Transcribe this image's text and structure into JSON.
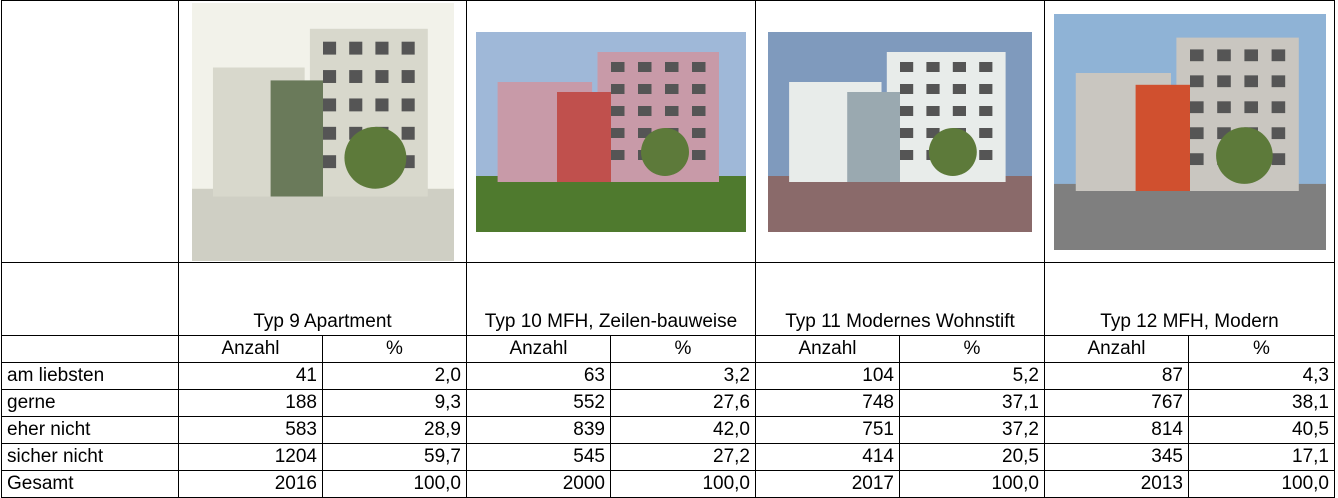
{
  "table": {
    "columns": [
      {
        "title": "Typ 9 Apartment",
        "subheaders": [
          "Anzahl",
          "%"
        ]
      },
      {
        "title": "Typ 10 MFH, Zeilen-bauweise",
        "subheaders": [
          "Anzahl",
          "%"
        ]
      },
      {
        "title": "Typ 11 Modernes Wohnstift",
        "subheaders": [
          "Anzahl",
          "%"
        ]
      },
      {
        "title": "Typ 12 MFH, Modern",
        "subheaders": [
          "Anzahl",
          "%"
        ]
      }
    ],
    "rows": [
      {
        "label": "am liebsten",
        "cells": [
          "41",
          "2,0",
          "63",
          "3,2",
          "104",
          "5,2",
          "87",
          "4,3"
        ]
      },
      {
        "label": "gerne",
        "cells": [
          "188",
          "9,3",
          "552",
          "27,6",
          "748",
          "37,1",
          "767",
          "38,1"
        ]
      },
      {
        "label": "eher nicht",
        "cells": [
          "583",
          "28,9",
          "839",
          "42,0",
          "751",
          "37,2",
          "814",
          "40,5"
        ]
      },
      {
        "label": "sicher nicht",
        "cells": [
          "1204",
          "59,7",
          "545",
          "27,2",
          "414",
          "20,5",
          "345",
          "17,1"
        ]
      },
      {
        "label": "Gesamt",
        "cells": [
          "2016",
          "100,0",
          "2000",
          "100,0",
          "2017",
          "100,0",
          "2013",
          "100,0"
        ]
      }
    ]
  }
}
